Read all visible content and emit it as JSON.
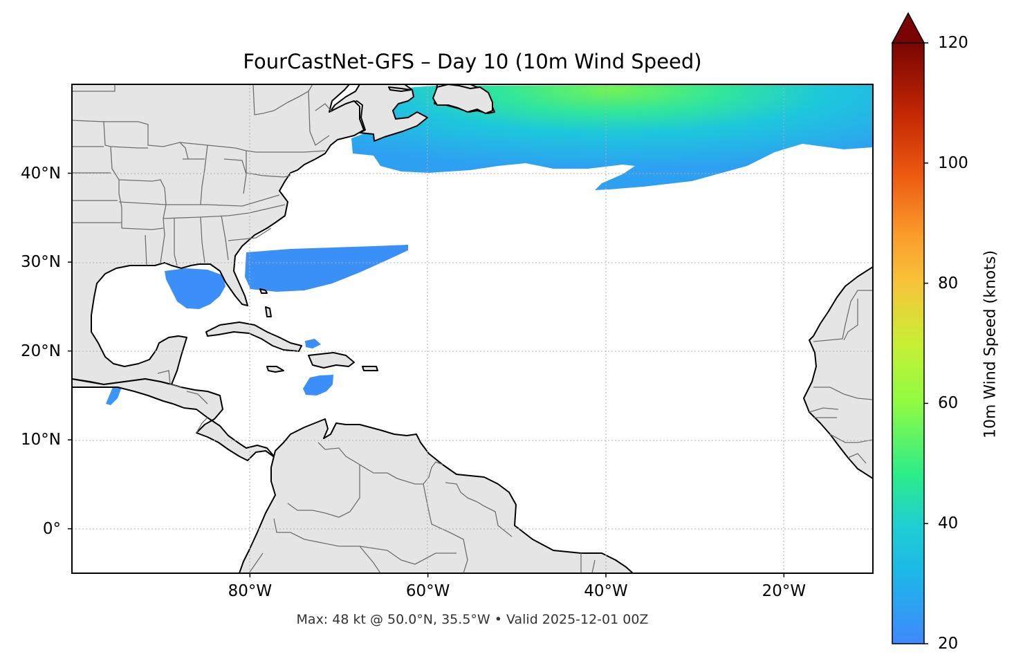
{
  "title": "FourCastNet-GFS – Day 10 (10m Wind Speed)",
  "footer": "Max: 48 kt @ 50.0°N, 35.5°W • Valid 2025-12-01 00Z",
  "map": {
    "projection": "PlateCarree",
    "extent_lon": [
      -100,
      -10
    ],
    "extent_lat": [
      -5,
      50
    ],
    "land_color": "#e5e5e5",
    "coastline_color": "#000000",
    "border_color": "#6e6e6e",
    "gridline_style": "dotted",
    "lat_ticks": [
      "40°N",
      "30°N",
      "20°N",
      "10°N",
      "0°"
    ],
    "lon_ticks": [
      "80°W",
      "60°W",
      "40°W",
      "20°W"
    ],
    "lat_values": [
      40,
      30,
      20,
      10,
      0
    ],
    "lon_values": [
      -80,
      -60,
      -40,
      -20
    ]
  },
  "wind_fields": [
    {
      "region": "North Atlantic storm track",
      "speed_range_kt": [
        20,
        48
      ]
    },
    {
      "region": "Off Southeast US coast",
      "speed_range_kt": [
        20,
        25
      ]
    },
    {
      "region": "Gulf of Mexico",
      "speed_range_kt": [
        20,
        23
      ]
    },
    {
      "region": "Caribbean south of Hispaniola",
      "speed_range_kt": [
        20,
        22
      ]
    },
    {
      "region": "East of Bahamas",
      "speed_range_kt": [
        20,
        21
      ]
    },
    {
      "region": "Gulf of Tehuantepec",
      "speed_range_kt": [
        20,
        24
      ]
    }
  ],
  "max_point": {
    "speed_kt": 48,
    "lat": 50.0,
    "lon": -35.5
  },
  "colorbar": {
    "label": "10m Wind Speed (knots)",
    "min": 20,
    "max": 120,
    "extend": "max",
    "colormap": "turbo",
    "ticks": [
      "20",
      "40",
      "60",
      "80",
      "100",
      "120"
    ],
    "tick_values": [
      20,
      40,
      60,
      80,
      100,
      120
    ]
  }
}
